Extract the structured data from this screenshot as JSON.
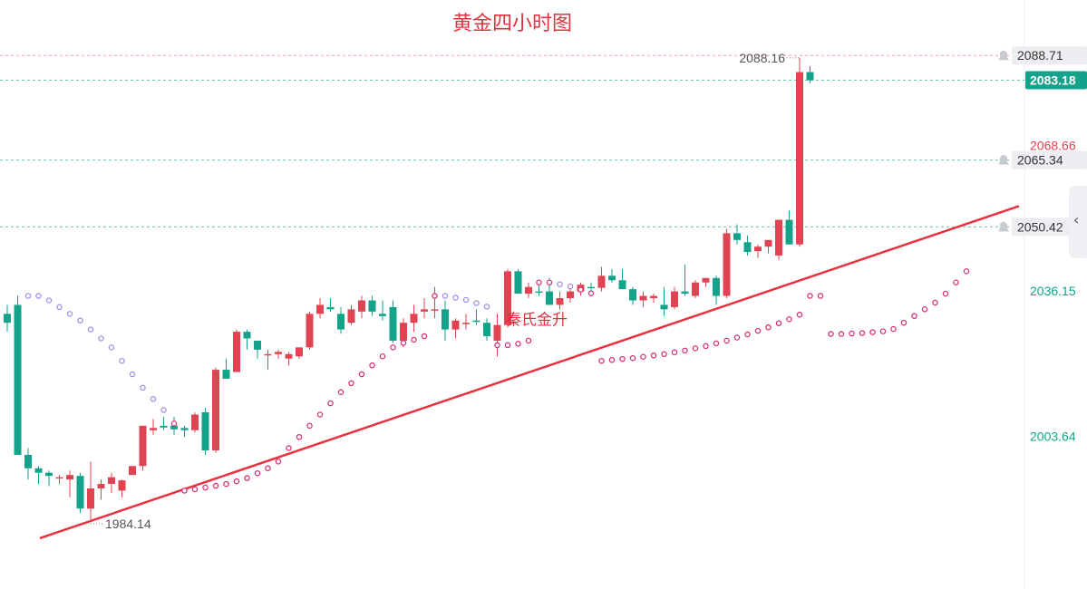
{
  "chart_data": {
    "type": "candlestick",
    "title": "黄金四小时图",
    "annotation": "秦氏金升",
    "ylim": [
      1975,
      2093
    ],
    "colors": {
      "up": "#e04452",
      "down": "#13a28a",
      "trendline": "#e8323f",
      "sar_upper": "#a48ee6",
      "sar_lower": "#d6337a",
      "price_tag": "#13a28a"
    },
    "price_labels": {
      "current": "2083.18",
      "high": "2088.16",
      "low": "1984.14",
      "alert_levels": [
        "2088.71",
        "2065.34",
        "2050.42"
      ],
      "axis_ticks": [
        {
          "value": "2068.66",
          "color": "#e04452"
        },
        {
          "value": "2036.15",
          "color": "#13a28a"
        },
        {
          "value": "2003.64",
          "color": "#13a28a"
        }
      ]
    },
    "candles": [
      [
        2031.0,
        2033.0,
        2027.0,
        2029.0
      ],
      [
        2033.0,
        2035.0,
        1999.5,
        1999.5
      ],
      [
        1999.5,
        2001.0,
        1994.0,
        1996.5
      ],
      [
        1996.5,
        1997.0,
        1993.0,
        1995.5
      ],
      [
        1995.5,
        1996.0,
        1992.5,
        1994.8
      ],
      [
        1994.3,
        1995.0,
        1993.0,
        1994.5
      ],
      [
        1994.0,
        1996.0,
        1990.0,
        1995.0
      ],
      [
        1994.8,
        1995.5,
        1986.5,
        1987.5
      ],
      [
        1987.5,
        1998.0,
        1985.0,
        1992.0
      ],
      [
        1992.0,
        1994.0,
        1989.5,
        1993.0
      ],
      [
        1993.0,
        1995.5,
        1991.0,
        1994.5
      ],
      [
        1991.5,
        1994.0,
        1990.0,
        1993.8
      ],
      [
        1995.0,
        1997.0,
        1995.0,
        1997.0
      ],
      [
        1997.0,
        2006.0,
        1996.0,
        2006.0
      ],
      [
        2005.0,
        2007.5,
        2004.0,
        2005.5
      ],
      [
        2006.0,
        2008.0,
        2005.0,
        2005.6
      ],
      [
        2006.0,
        2008.0,
        2004.0,
        2005.2
      ],
      [
        2005.5,
        2006.0,
        2003.5,
        2005.0
      ],
      [
        2005.0,
        2009.0,
        2004.5,
        2008.5
      ],
      [
        2009.0,
        2010.0,
        1999.5,
        2000.5
      ],
      [
        2000.5,
        2019.0,
        2000.0,
        2018.5
      ],
      [
        2018.5,
        2021.0,
        2017.0,
        2016.5
      ],
      [
        2018.0,
        2027.5,
        2018.0,
        2027.0
      ],
      [
        2027.0,
        2027.5,
        2023.0,
        2025.5
      ],
      [
        2025.0,
        2025.0,
        2021.0,
        2023.0
      ],
      [
        2022.0,
        2023.0,
        2018.5,
        2022.0
      ],
      [
        2022.0,
        2023.0,
        2021.0,
        2022.5
      ],
      [
        2021.0,
        2022.5,
        2019.5,
        2022.0
      ],
      [
        2021.5,
        2023.5,
        2021.0,
        2023.5
      ],
      [
        2023.5,
        2031.5,
        2023.0,
        2031.0
      ],
      [
        2031.0,
        2034.5,
        2030.0,
        2033.0
      ],
      [
        2032.5,
        2034.5,
        2031.5,
        2032.0
      ],
      [
        2031.0,
        2032.5,
        2026.5,
        2027.5
      ],
      [
        2029.0,
        2033.0,
        2028.5,
        2032.0
      ],
      [
        2031.5,
        2035.0,
        2030.0,
        2034.0
      ],
      [
        2034.0,
        2035.0,
        2030.5,
        2031.5
      ],
      [
        2031.0,
        2034.0,
        2029.5,
        2030.5
      ],
      [
        2032.5,
        2034.0,
        2024.5,
        2025.0
      ],
      [
        2025.0,
        2030.0,
        2023.5,
        2029.0
      ],
      [
        2029.0,
        2033.0,
        2027.0,
        2031.0
      ],
      [
        2031.5,
        2034.5,
        2030.0,
        2032.0
      ],
      [
        2032.0,
        2037.0,
        2030.0,
        2032.0
      ],
      [
        2032.0,
        2034.0,
        2025.0,
        2027.5
      ],
      [
        2027.5,
        2030.0,
        2025.5,
        2029.5
      ],
      [
        2029.0,
        2031.0,
        2027.5,
        2029.0
      ],
      [
        2029.5,
        2032.0,
        2028.5,
        2029.2
      ],
      [
        2029.0,
        2030.0,
        2025.0,
        2026.0
      ],
      [
        2025.0,
        2031.0,
        2021.5,
        2028.5
      ],
      [
        2028.5,
        2041.0,
        2028.0,
        2040.5
      ],
      [
        2040.5,
        2041.0,
        2035.5,
        2035.5
      ],
      [
        2035.5,
        2038.0,
        2034.5,
        2037.0
      ],
      [
        2036.0,
        2038.5,
        2035.0,
        2035.8
      ],
      [
        2036.0,
        2039.0,
        2033.0,
        2033.0
      ],
      [
        2033.0,
        2036.0,
        2032.0,
        2034.5
      ],
      [
        2034.5,
        2037.0,
        2033.5,
        2036.0
      ],
      [
        2036.0,
        2038.0,
        2035.0,
        2037.5
      ],
      [
        2037.0,
        2038.0,
        2036.0,
        2036.8
      ],
      [
        2036.8,
        2041.5,
        2036.0,
        2039.5
      ],
      [
        2039.5,
        2041.0,
        2038.0,
        2038.5
      ],
      [
        2038.5,
        2041.0,
        2036.5,
        2036.5
      ],
      [
        2036.5,
        2037.0,
        2033.0,
        2034.0
      ],
      [
        2034.0,
        2036.0,
        2032.5,
        2035.0
      ],
      [
        2034.5,
        2035.5,
        2033.5,
        2035.0
      ],
      [
        2033.0,
        2037.0,
        2030.5,
        2032.0
      ],
      [
        2032.5,
        2037.0,
        2032.0,
        2036.0
      ],
      [
        2036.0,
        2042.0,
        2035.0,
        2035.5
      ],
      [
        2035.0,
        2038.5,
        2034.5,
        2038.0
      ],
      [
        2038.0,
        2039.0,
        2037.0,
        2039.0
      ],
      [
        2039.0,
        2039.5,
        2033.0,
        2035.0
      ],
      [
        2035.0,
        2050.0,
        2034.5,
        2049.0
      ],
      [
        2049.0,
        2051.0,
        2046.5,
        2047.5
      ],
      [
        2047.0,
        2048.5,
        2044.0,
        2044.8
      ],
      [
        2045.0,
        2046.5,
        2043.5,
        2046.0
      ],
      [
        2046.0,
        2047.0,
        2044.5,
        2047.5
      ],
      [
        2044.0,
        2052.0,
        2043.0,
        2052.0
      ],
      [
        2052.0,
        2054.0,
        2046.5,
        2046.5
      ],
      [
        2046.5,
        2088.2,
        2046.0,
        2085.0
      ],
      [
        2085.0,
        2086.3,
        2082.5,
        2083.18
      ]
    ],
    "sar": [
      [
        2,
        2035.0
      ],
      [
        3,
        2035.0
      ],
      [
        4,
        2034.0
      ],
      [
        5,
        2032.5
      ],
      [
        6,
        2031.0
      ],
      [
        7,
        2029.5
      ],
      [
        8,
        2027.5
      ],
      [
        9,
        2025.5
      ],
      [
        10,
        2023.5
      ],
      [
        11,
        2020.5
      ],
      [
        12,
        2017.5
      ],
      [
        13,
        2014.5
      ],
      [
        14,
        2012.0
      ],
      [
        15,
        2009.5
      ],
      [
        16,
        2006.5
      ],
      [
        17,
        1991.5
      ],
      [
        18,
        1991.8
      ],
      [
        19,
        1992.2
      ],
      [
        20,
        1992.6
      ],
      [
        21,
        1993.0
      ],
      [
        22,
        1993.6
      ],
      [
        23,
        1994.3
      ],
      [
        24,
        1995.4
      ],
      [
        25,
        1996.5
      ],
      [
        26,
        1998.0
      ],
      [
        27,
        2001.0
      ],
      [
        28,
        2003.5
      ],
      [
        29,
        2006.0
      ],
      [
        30,
        2008.5
      ],
      [
        31,
        2011.0
      ],
      [
        32,
        2013.5
      ],
      [
        33,
        2015.5
      ],
      [
        34,
        2017.5
      ],
      [
        35,
        2019.5
      ],
      [
        36,
        2021.5
      ],
      [
        37,
        2023.5
      ],
      [
        38,
        2024.5
      ],
      [
        39,
        2025.2
      ],
      [
        40,
        2026.0
      ],
      [
        41,
        2035.0
      ],
      [
        42,
        2035.0
      ],
      [
        43,
        2034.6
      ],
      [
        44,
        2034.1
      ],
      [
        45,
        2033.4
      ],
      [
        46,
        2032.6
      ],
      [
        47,
        2024.0
      ],
      [
        48,
        2024.0
      ],
      [
        49,
        2024.3
      ],
      [
        50,
        2025.0
      ],
      [
        51,
        2038.0
      ],
      [
        52,
        2038.0
      ],
      [
        53,
        2037.6
      ],
      [
        54,
        2037.1
      ],
      [
        55,
        2036.4
      ],
      [
        56,
        2035.6
      ],
      [
        57,
        2020.5
      ],
      [
        58,
        2020.7
      ],
      [
        59,
        2020.9
      ],
      [
        60,
        2021.1
      ],
      [
        61,
        2021.4
      ],
      [
        62,
        2021.7
      ],
      [
        63,
        2022.0
      ],
      [
        64,
        2022.4
      ],
      [
        65,
        2022.8
      ],
      [
        66,
        2023.3
      ],
      [
        67,
        2023.8
      ],
      [
        68,
        2024.4
      ],
      [
        69,
        2025.0
      ],
      [
        70,
        2025.7
      ],
      [
        71,
        2026.4
      ],
      [
        72,
        2027.2
      ],
      [
        73,
        2028.0
      ],
      [
        74,
        2028.9
      ],
      [
        75,
        2029.8
      ],
      [
        76,
        2030.8
      ],
      [
        77,
        2035.0
      ],
      [
        78,
        2035.0
      ],
      [
        79,
        2026.5
      ],
      [
        80,
        2026.5
      ],
      [
        81,
        2026.6
      ],
      [
        82,
        2026.7
      ],
      [
        83,
        2026.9
      ],
      [
        84,
        2027.1
      ],
      [
        85,
        2027.6
      ],
      [
        86,
        2029.0
      ],
      [
        87,
        2030.5
      ],
      [
        88,
        2032.0
      ],
      [
        89,
        2033.5
      ],
      [
        90,
        2035.5
      ],
      [
        91,
        2038.0
      ],
      [
        92,
        2040.5
      ]
    ],
    "trendline": [
      [
        2,
        1980.0
      ],
      [
        90,
        2049.5
      ]
    ]
  }
}
